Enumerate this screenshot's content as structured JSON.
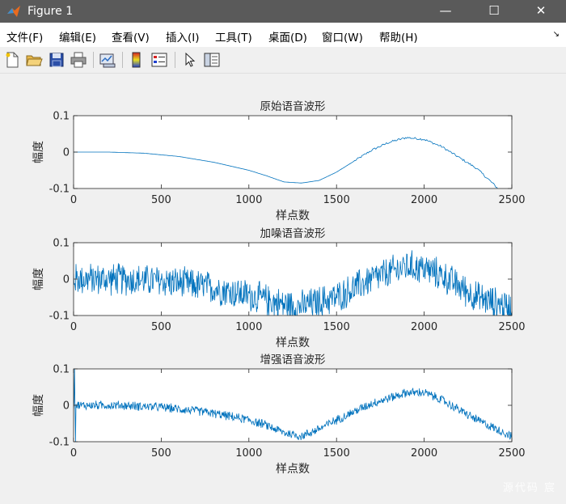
{
  "window": {
    "title": "Figure 1",
    "minimize_glyph": "—",
    "maximize_glyph": "☐",
    "close_glyph": "✕"
  },
  "menu": {
    "items": [
      "文件(F)",
      "编辑(E)",
      "查看(V)",
      "插入(I)",
      "工具(T)",
      "桌面(D)",
      "窗口(W)",
      "帮助(H)"
    ],
    "overflow_glyph": "↘"
  },
  "toolbar": {
    "icons": [
      "new-figure-icon",
      "open-file-icon",
      "save-icon",
      "print-icon",
      "link-plot-icon",
      "colorbar-icon",
      "legend-icon",
      "pointer-icon",
      "property-editor-icon"
    ]
  },
  "watermark": "源代码  宸",
  "line_color": "#0072bd",
  "chart_data": [
    {
      "type": "line",
      "title": "原始语音波形",
      "xlabel": "样点数",
      "ylabel": "幅度",
      "xlim": [
        0,
        2500
      ],
      "ylim": [
        -0.1,
        0.1
      ],
      "xticks": [
        0,
        500,
        1000,
        1500,
        2000,
        2500
      ],
      "yticks": [
        -0.1,
        0,
        0.1
      ],
      "xtick_labels": [
        "0",
        "500",
        "1000",
        "1500",
        "2000",
        "2500"
      ],
      "ytick_labels": [
        "-0.1",
        "0",
        "0.1"
      ],
      "grid": false,
      "series": [
        {
          "x": [
            0,
            200,
            400,
            600,
            800,
            1000,
            1100,
            1200,
            1300,
            1400,
            1500,
            1600,
            1700,
            1800,
            1900,
            2000,
            2100,
            2200,
            2300,
            2400,
            2420
          ],
          "values": [
            0,
            0,
            -0.003,
            -0.012,
            -0.028,
            -0.05,
            -0.065,
            -0.082,
            -0.085,
            -0.078,
            -0.055,
            -0.025,
            0.005,
            0.027,
            0.04,
            0.035,
            0.015,
            -0.015,
            -0.045,
            -0.09,
            -0.1
          ]
        }
      ]
    },
    {
      "type": "line",
      "title": "加噪语音波形",
      "xlabel": "样点数",
      "ylabel": "幅度",
      "xlim": [
        0,
        2500
      ],
      "ylim": [
        -0.1,
        0.1
      ],
      "xticks": [
        0,
        500,
        1000,
        1500,
        2000,
        2500
      ],
      "yticks": [
        -0.1,
        0,
        0.1
      ],
      "xtick_labels": [
        "0",
        "500",
        "1000",
        "1500",
        "2000",
        "2500"
      ],
      "ytick_labels": [
        "-0.1",
        "0",
        "0.1"
      ],
      "grid": false,
      "series": [
        {
          "x": [
            0,
            250,
            500,
            750,
            1000,
            1200,
            1300,
            1500,
            1700,
            1900,
            2000,
            2100,
            2300,
            2500
          ],
          "values": [
            0,
            0,
            -0.005,
            -0.02,
            -0.045,
            -0.07,
            -0.075,
            -0.05,
            0.0,
            0.035,
            0.03,
            0.01,
            -0.05,
            -0.08
          ],
          "noise_amplitude": 0.05
        }
      ]
    },
    {
      "type": "line",
      "title": "增强语音波形",
      "xlabel": "样点数",
      "ylabel": "幅度",
      "xlim": [
        0,
        2500
      ],
      "ylim": [
        -0.1,
        0.1
      ],
      "xticks": [
        0,
        500,
        1000,
        1500,
        2000,
        2500
      ],
      "yticks": [
        -0.1,
        0,
        0.1
      ],
      "xtick_labels": [
        "0",
        "500",
        "1000",
        "1500",
        "2000",
        "2500"
      ],
      "ytick_labels": [
        "-0.1",
        "0",
        "0.1"
      ],
      "grid": false,
      "series": [
        {
          "x": [
            0,
            250,
            500,
            750,
            1000,
            1100,
            1200,
            1300,
            1400,
            1500,
            1700,
            1900,
            2000,
            2100,
            2300,
            2500
          ],
          "values": [
            0,
            0,
            -0.005,
            -0.018,
            -0.04,
            -0.055,
            -0.075,
            -0.085,
            -0.065,
            -0.04,
            0.005,
            0.035,
            0.035,
            0.015,
            -0.04,
            -0.085
          ],
          "noise_amplitude": 0.014,
          "transient_peak": 0.1,
          "transient_trough": -0.1
        }
      ]
    }
  ]
}
